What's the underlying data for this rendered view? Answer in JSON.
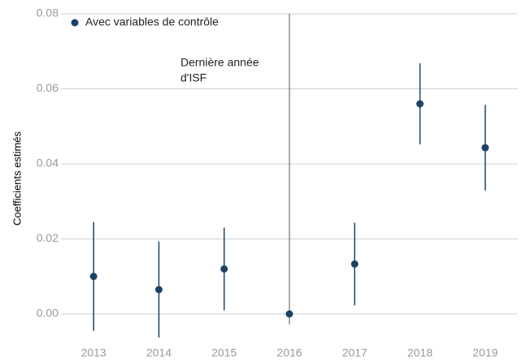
{
  "chart_data": {
    "type": "errorbar",
    "y_label": "Coefficients estimés",
    "x": [
      2013,
      2014,
      2015,
      2016,
      2017,
      2018,
      2019
    ],
    "xlim": [
      2012.5,
      2019.5
    ],
    "xticks": [
      2013,
      2014,
      2015,
      2016,
      2017,
      2018,
      2019
    ],
    "ylim": [
      0,
      0.08
    ],
    "yticks": [
      {
        "value": 0,
        "label": "0.00"
      },
      {
        "value": 0.02,
        "label": "0.02"
      },
      {
        "value": 0.04,
        "label": "0.04"
      },
      {
        "value": 0.06,
        "label": "0.06"
      },
      {
        "value": 0.08,
        "label": "0.08"
      }
    ],
    "grid": true,
    "legend": "upper left",
    "series": [
      {
        "name": "Avec variables de contrôle",
        "color": "#1b4268",
        "values": [
          0.01,
          0.0065,
          0.012,
          0,
          0.0133,
          0.056,
          0.0443
        ],
        "errors": [
          0.0145,
          0.0128,
          0.011,
          0,
          0.011,
          0.0108,
          0.0114
        ]
      }
    ],
    "annotation": {
      "text": [
        "Dernière année",
        "d'ISF"
      ],
      "x": 2016
    }
  }
}
